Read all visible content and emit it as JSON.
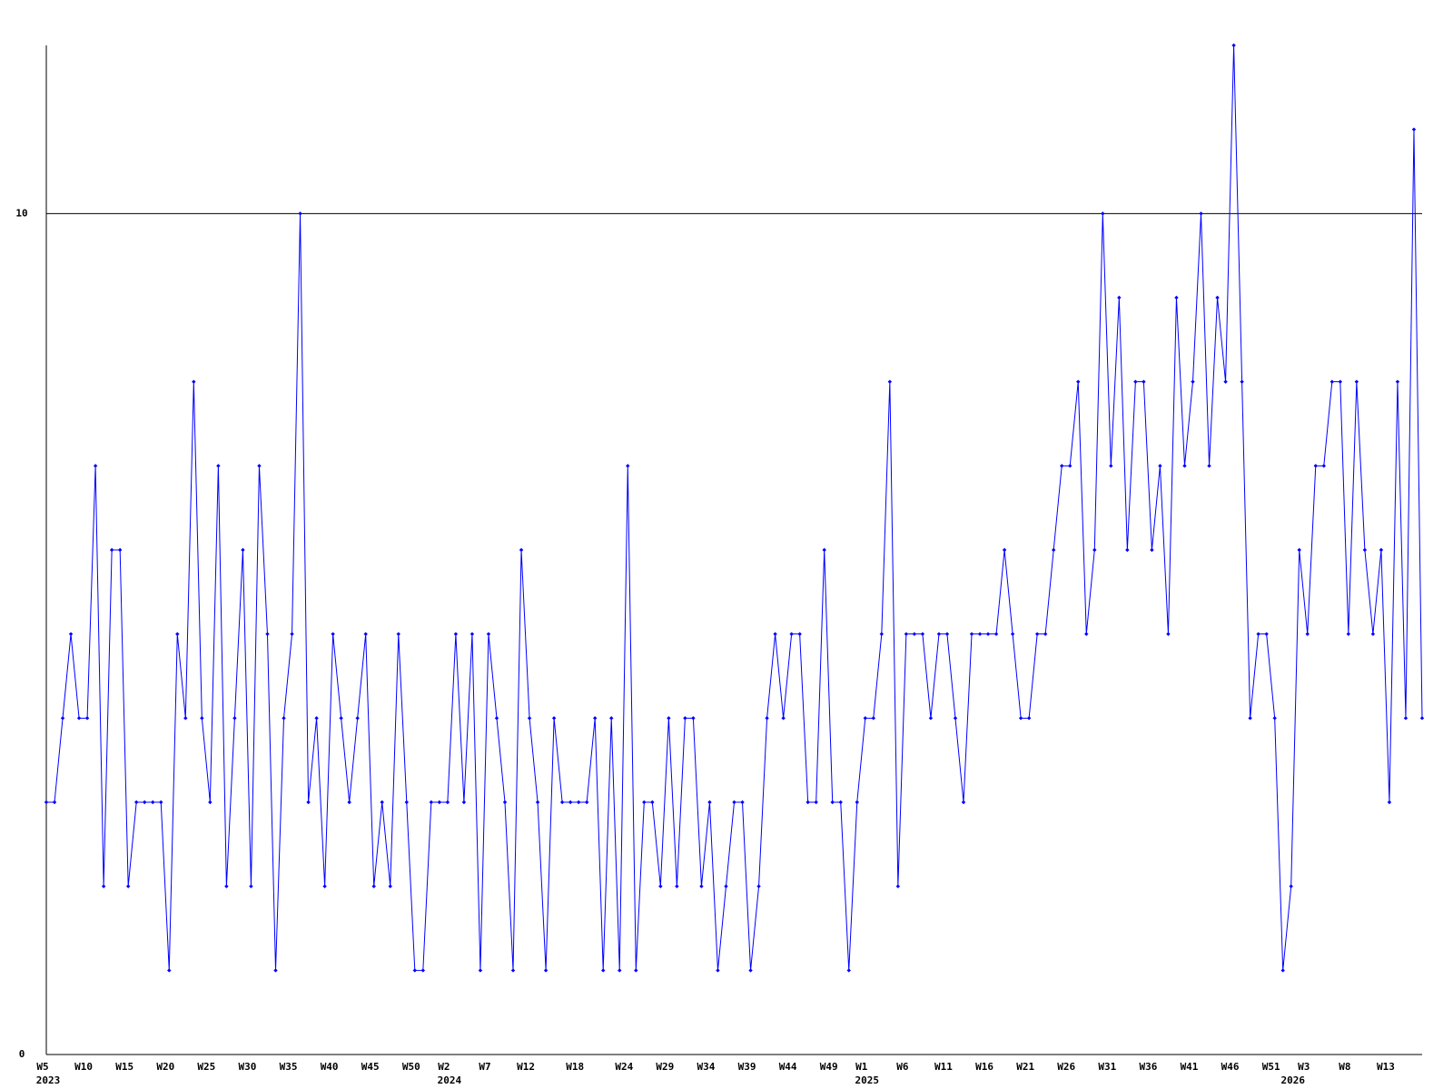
{
  "chart_data": {
    "type": "line",
    "categories": [
      "W5",
      null,
      null,
      null,
      null,
      "W10",
      null,
      null,
      null,
      null,
      "W15",
      null,
      null,
      null,
      null,
      "W20",
      null,
      null,
      null,
      null,
      "W25",
      null,
      null,
      null,
      null,
      "W30",
      null,
      null,
      null,
      null,
      "W35",
      null,
      null,
      null,
      null,
      "W40",
      null,
      null,
      null,
      null,
      "W45",
      null,
      null,
      null,
      null,
      "W50",
      null,
      null,
      null,
      "W2",
      null,
      null,
      null,
      null,
      "W7",
      null,
      null,
      null,
      null,
      "W12",
      null,
      null,
      null,
      null,
      null,
      "W18",
      null,
      null,
      null,
      null,
      null,
      "W24",
      null,
      null,
      null,
      null,
      "W29",
      null,
      null,
      null,
      null,
      "W34",
      null,
      null,
      null,
      null,
      "W39",
      null,
      null,
      null,
      null,
      "W44",
      null,
      null,
      null,
      null,
      "W49",
      null,
      null,
      null,
      "W1",
      null,
      null,
      null,
      null,
      "W6",
      null,
      null,
      null,
      null,
      "W11",
      null,
      null,
      null,
      null,
      "W16",
      null,
      null,
      null,
      null,
      "W21",
      null,
      null,
      null,
      null,
      "W26",
      null,
      null,
      null,
      null,
      "W31",
      null,
      null,
      null,
      null,
      "W36",
      null,
      null,
      null,
      null,
      "W41",
      null,
      null,
      null,
      null,
      "W46",
      null,
      null,
      null,
      null,
      "W51",
      null,
      null,
      null,
      "W3",
      null,
      null,
      null,
      null,
      "W8",
      null,
      null,
      null,
      null,
      "W13",
      null,
      null,
      null,
      null
    ],
    "category_years": [
      "2023",
      null,
      null,
      null,
      null,
      null,
      null,
      null,
      null,
      null,
      null,
      null,
      null,
      null,
      null,
      null,
      null,
      null,
      null,
      null,
      null,
      null,
      null,
      null,
      null,
      null,
      null,
      null,
      null,
      null,
      null,
      null,
      null,
      null,
      null,
      null,
      null,
      null,
      null,
      null,
      null,
      null,
      null,
      null,
      null,
      null,
      null,
      null,
      null,
      "2024",
      null,
      null,
      null,
      null,
      null,
      null,
      null,
      null,
      null,
      null,
      null,
      null,
      null,
      null,
      null,
      null,
      null,
      null,
      null,
      null,
      null,
      null,
      null,
      null,
      null,
      null,
      null,
      null,
      null,
      null,
      null,
      null,
      null,
      null,
      null,
      null,
      null,
      null,
      null,
      null,
      null,
      null,
      null,
      null,
      null,
      null,
      null,
      null,
      null,
      null,
      "2025",
      null,
      null,
      null,
      null,
      null,
      null,
      null,
      null,
      null,
      null,
      null,
      null,
      null,
      null,
      null,
      null,
      null,
      null,
      null,
      null,
      null,
      null,
      null,
      null,
      null,
      null,
      null,
      null,
      null,
      null,
      null,
      null,
      null,
      null,
      null,
      null,
      null,
      null,
      null,
      null,
      null,
      null,
      null,
      null,
      null,
      null,
      null,
      null,
      null,
      null,
      null,
      "2026",
      null,
      null,
      null,
      null,
      null,
      null,
      null,
      null,
      null,
      null,
      null,
      null,
      null,
      null,
      null,
      null
    ],
    "values": [
      3,
      3,
      4,
      5,
      4,
      4,
      7,
      2,
      6,
      6,
      2,
      3,
      3,
      3,
      3,
      1,
      5,
      4,
      8,
      4,
      3,
      7,
      2,
      4,
      6,
      2,
      7,
      5,
      1,
      4,
      5,
      10,
      3,
      4,
      2,
      5,
      4,
      3,
      4,
      5,
      2,
      3,
      2,
      5,
      3,
      1,
      1,
      3,
      3,
      3,
      5,
      3,
      5,
      1,
      5,
      4,
      3,
      1,
      6,
      4,
      3,
      1,
      4,
      3,
      3,
      3,
      3,
      4,
      1,
      4,
      1,
      7,
      1,
      3,
      3,
      2,
      4,
      2,
      4,
      4,
      2,
      3,
      1,
      2,
      3,
      3,
      1,
      2,
      4,
      5,
      4,
      5,
      5,
      3,
      3,
      6,
      3,
      3,
      1,
      3,
      4,
      4,
      5,
      8,
      2,
      5,
      5,
      5,
      4,
      5,
      5,
      4,
      3,
      5,
      5,
      5,
      5,
      6,
      5,
      4,
      4,
      5,
      5,
      6,
      7,
      7,
      8,
      5,
      6,
      10,
      7,
      9,
      6,
      8,
      8,
      6,
      7,
      5,
      9,
      7,
      8,
      10,
      7,
      9,
      8,
      12,
      8,
      4,
      5,
      5,
      4,
      1,
      2,
      6,
      5,
      7,
      7,
      8,
      8,
      5,
      8,
      6,
      5,
      6,
      3,
      8,
      4,
      11,
      4
    ],
    "color": "#0000ff",
    "ylim": [
      0,
      12
    ],
    "yticks": [
      0,
      10
    ],
    "grid": true
  }
}
